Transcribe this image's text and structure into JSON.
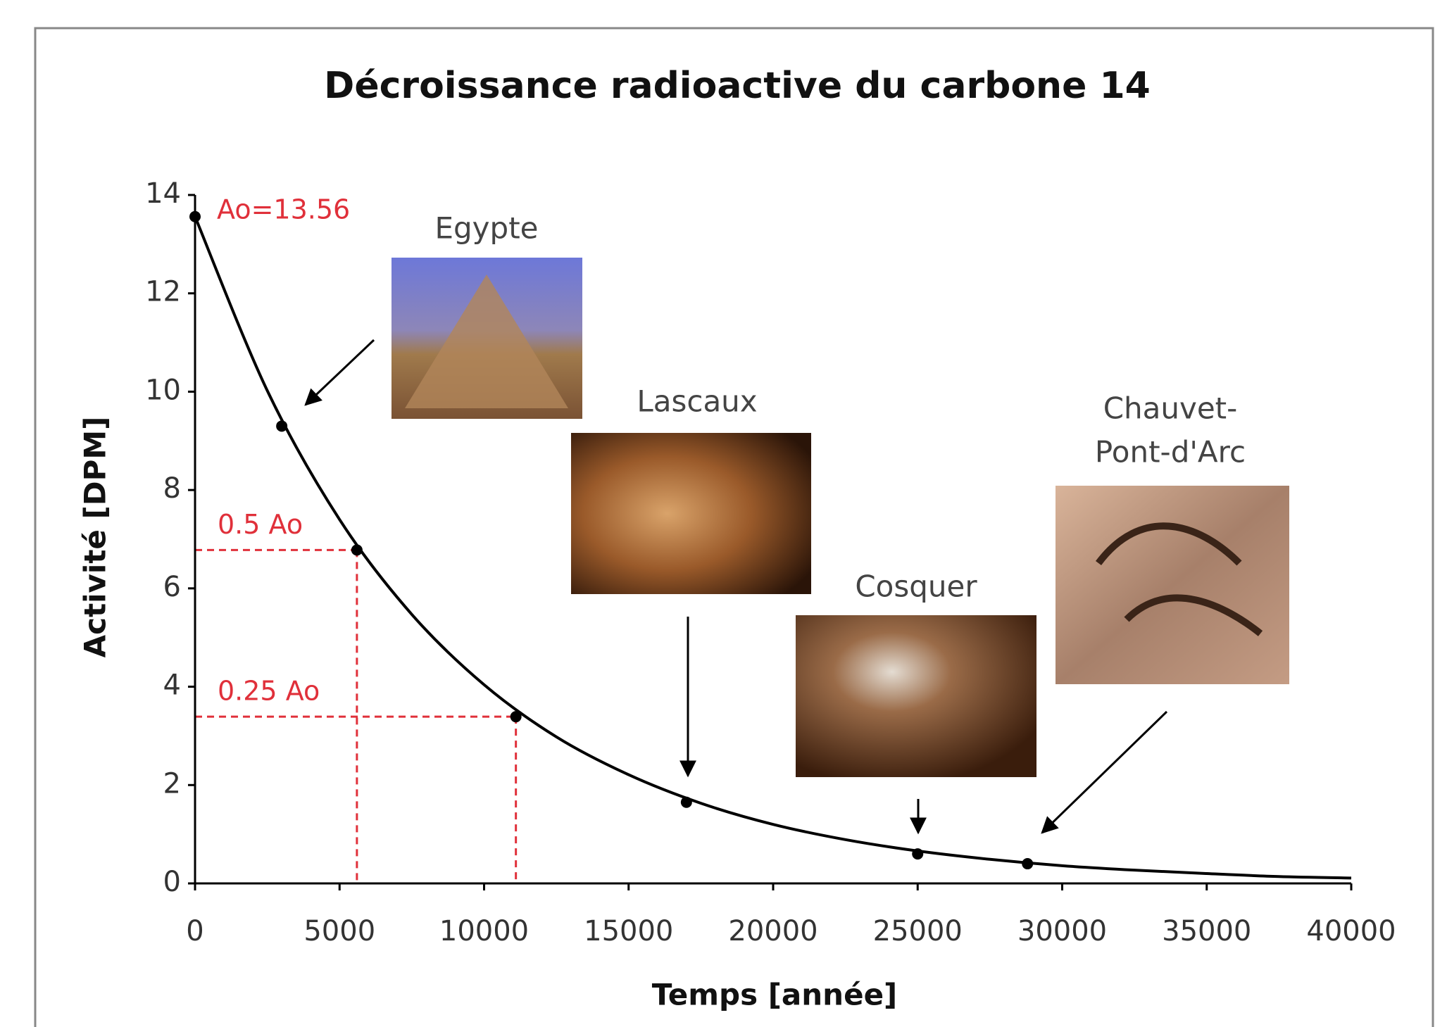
{
  "chart_data": {
    "type": "line",
    "title": "Décroissance radioactive du carbone 14",
    "xlabel": "Temps [année]",
    "ylabel": "Activité [DPM]",
    "xlim": [
      0,
      40000
    ],
    "ylim": [
      0,
      14
    ],
    "xticks": [
      0,
      5000,
      10000,
      15000,
      20000,
      25000,
      30000,
      35000,
      40000
    ],
    "yticks": [
      0,
      2,
      4,
      6,
      8,
      10,
      12,
      14
    ],
    "series": [
      {
        "color": "#000000",
        "x": [
          0,
          2500,
          5000,
          7500,
          10000,
          12500,
          15000,
          17500,
          20000,
          22500,
          25000,
          27500,
          30000,
          32500,
          35000,
          37500,
          40000
        ],
        "values": [
          13.56,
          10.02,
          7.4,
          5.47,
          4.04,
          2.98,
          2.21,
          1.63,
          1.2,
          0.89,
          0.66,
          0.49,
          0.36,
          0.27,
          0.2,
          0.14,
          0.11
        ]
      },
      {
        "color": "#000000",
        "markers": true,
        "x": [
          0,
          3000,
          5600,
          11100,
          17000,
          25000,
          28800
        ],
        "values": [
          13.56,
          9.3,
          6.78,
          3.39,
          1.65,
          0.6,
          0.4
        ]
      }
    ],
    "reference_color": "#e0303a",
    "reference_lines": [
      {
        "x": 5600,
        "y": 6.78,
        "label": "0.5 Ao"
      },
      {
        "x": 11100,
        "y": 3.39,
        "label": "0.25 Ao"
      }
    ],
    "annotation": "Ao=13.56",
    "sites": [
      "Egypte",
      "Lascaux",
      "Cosquer",
      "Chauvet-",
      "Pont-d'Arc"
    ]
  }
}
